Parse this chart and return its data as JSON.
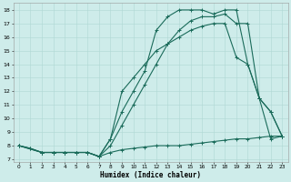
{
  "xlabel": "Humidex (Indice chaleur)",
  "background_color": "#ceecea",
  "line_color": "#1a6b5a",
  "grid_color": "#aed8d4",
  "xlim": [
    -0.5,
    23.5
  ],
  "ylim": [
    6.8,
    18.5
  ],
  "xticks": [
    0,
    1,
    2,
    3,
    4,
    5,
    6,
    7,
    8,
    9,
    10,
    11,
    12,
    13,
    14,
    15,
    16,
    17,
    18,
    19,
    20,
    21,
    22,
    23
  ],
  "yticks": [
    7,
    8,
    9,
    10,
    11,
    12,
    13,
    14,
    15,
    16,
    17,
    18
  ],
  "line1_x": [
    0,
    1,
    2,
    3,
    4,
    5,
    6,
    7,
    8,
    9,
    10,
    11,
    12,
    13,
    14,
    15,
    16,
    17,
    18,
    19,
    20,
    21,
    22,
    23
  ],
  "line1_y": [
    8.0,
    7.8,
    7.5,
    7.5,
    7.5,
    7.5,
    7.5,
    7.2,
    7.5,
    7.7,
    7.8,
    7.9,
    8.0,
    8.0,
    8.0,
    8.1,
    8.2,
    8.3,
    8.4,
    8.5,
    8.5,
    8.6,
    8.7,
    8.7
  ],
  "line2_x": [
    0,
    1,
    2,
    3,
    4,
    5,
    6,
    7,
    8,
    9,
    10,
    11,
    12,
    13,
    14,
    15,
    16,
    17,
    18,
    19,
    20,
    21,
    22,
    23
  ],
  "line2_y": [
    8.0,
    7.8,
    7.5,
    7.5,
    7.5,
    7.5,
    7.5,
    7.2,
    8.5,
    10.5,
    12.0,
    13.5,
    16.5,
    17.5,
    18.0,
    18.0,
    18.0,
    17.7,
    18.0,
    18.0,
    14.0,
    11.5,
    10.5,
    8.7
  ],
  "line3_x": [
    0,
    2,
    3,
    4,
    5,
    6,
    7,
    8,
    9,
    10,
    11,
    12,
    13,
    14,
    15,
    16,
    17,
    18,
    19,
    20,
    21,
    22,
    23
  ],
  "line3_y": [
    8.0,
    7.5,
    7.5,
    7.5,
    7.5,
    7.5,
    7.2,
    8.0,
    9.5,
    11.0,
    12.5,
    14.0,
    15.5,
    16.5,
    17.2,
    17.5,
    17.5,
    17.7,
    17.0,
    17.0,
    11.5,
    8.5,
    8.7
  ],
  "line4_x": [
    0,
    2,
    3,
    4,
    5,
    6,
    7,
    8,
    9,
    10,
    11,
    12,
    13,
    14,
    15,
    16,
    17,
    18,
    19,
    20,
    21,
    22,
    23
  ],
  "line4_y": [
    8.0,
    7.5,
    7.5,
    7.5,
    7.5,
    7.5,
    7.2,
    8.5,
    12.0,
    13.0,
    14.0,
    15.0,
    15.5,
    16.0,
    16.5,
    16.8,
    17.0,
    17.0,
    14.5,
    14.0,
    11.5,
    10.5,
    8.7
  ],
  "markersize": 3,
  "linewidth": 0.8
}
